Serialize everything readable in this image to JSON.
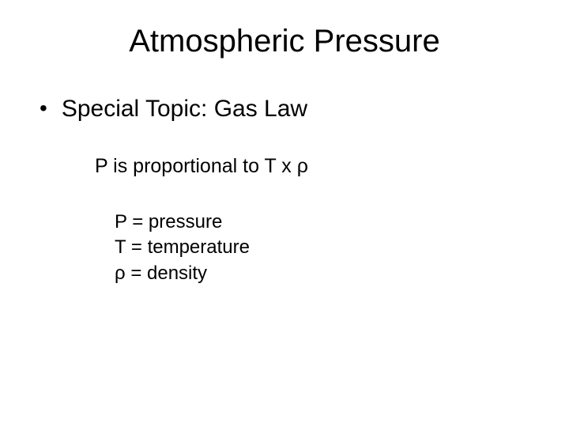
{
  "slide": {
    "title": "Atmospheric Pressure",
    "bullet_label": "Special Topic: Gas Law",
    "proportional_line": "P is proportional to T x ρ",
    "definitions": [
      "P = pressure",
      "T = temperature",
      "ρ = density"
    ]
  },
  "style": {
    "background_color": "#ffffff",
    "text_color": "#000000",
    "font_family": "Arial",
    "title_fontsize": 40,
    "bullet_fontsize": 30,
    "line_fontsize": 25,
    "def_fontsize": 24
  }
}
